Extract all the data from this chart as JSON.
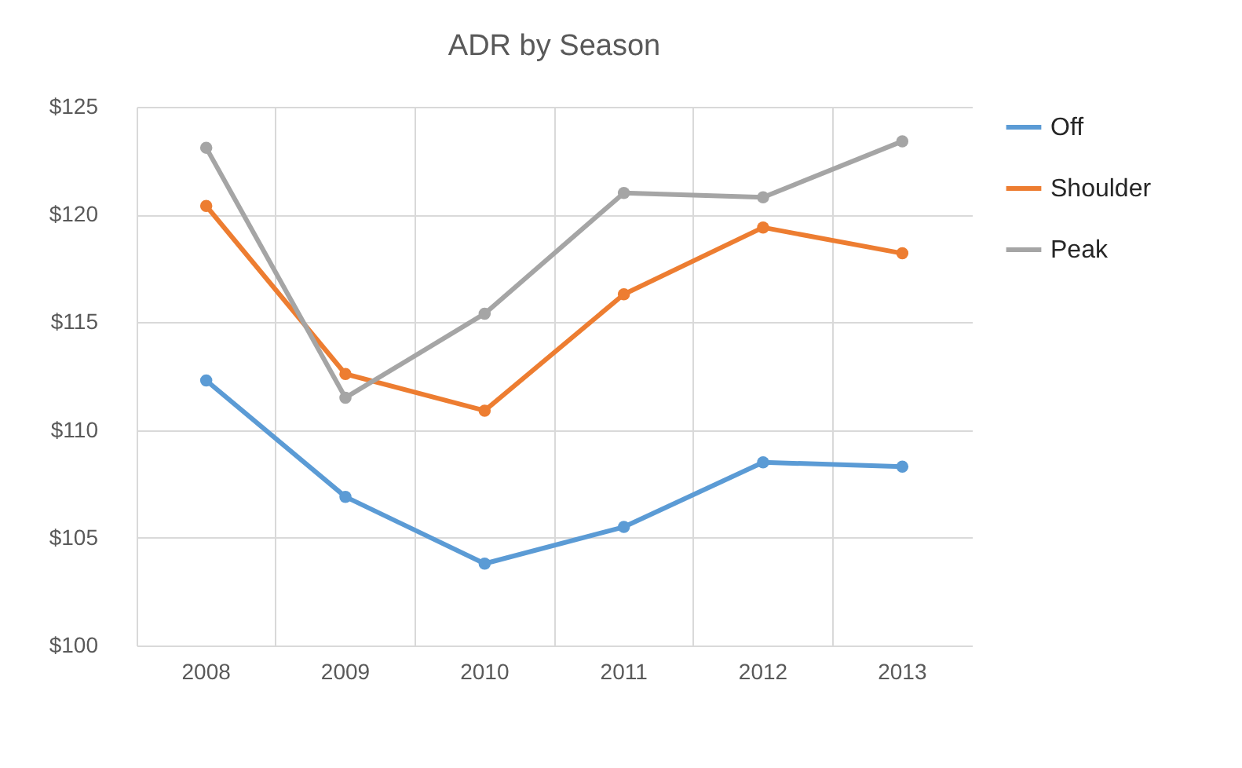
{
  "chart_data": {
    "type": "line",
    "title": "ADR by Season",
    "categories": [
      "2008",
      "2009",
      "2010",
      "2011",
      "2012",
      "2013"
    ],
    "series": [
      {
        "name": "Off",
        "color": "#5b9bd5",
        "values": [
          112.3,
          106.9,
          103.8,
          105.5,
          108.5,
          108.3
        ]
      },
      {
        "name": "Shoulder",
        "color": "#ed7d31",
        "values": [
          120.4,
          112.6,
          110.9,
          116.3,
          119.4,
          118.2
        ]
      },
      {
        "name": "Peak",
        "color": "#a5a5a5",
        "values": [
          123.1,
          111.5,
          115.4,
          121.0,
          120.8,
          123.4
        ]
      }
    ],
    "ylim": [
      100,
      125
    ],
    "yticks": [
      {
        "value": 100,
        "label": "$100"
      },
      {
        "value": 105,
        "label": "$105"
      },
      {
        "value": 110,
        "label": "$110"
      },
      {
        "value": 115,
        "label": "$115"
      },
      {
        "value": 120,
        "label": "$120"
      },
      {
        "value": 125,
        "label": "$125"
      }
    ],
    "grid": true,
    "legend": "right",
    "marker": "circle",
    "line_style": "solid"
  }
}
